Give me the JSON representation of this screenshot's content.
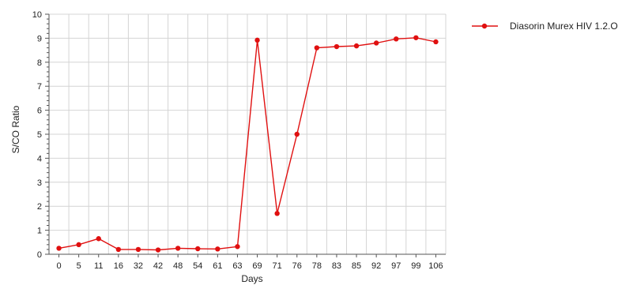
{
  "chart_data": {
    "type": "line",
    "title": "",
    "xlabel": "Days",
    "ylabel": "S/CO Ratio",
    "ylim": [
      0,
      10
    ],
    "yticks": [
      0,
      1,
      2,
      3,
      4,
      5,
      6,
      7,
      8,
      9,
      10
    ],
    "minor_ticks_per_major": 4,
    "grid": true,
    "legend_position": "top-right",
    "categories": [
      "0",
      "5",
      "11",
      "16",
      "32",
      "42",
      "48",
      "54",
      "61",
      "63",
      "69",
      "71",
      "76",
      "78",
      "83",
      "85",
      "92",
      "97",
      "99",
      "106"
    ],
    "series": [
      {
        "name": "Diasorin Murex HIV 1.2.O",
        "color": "#e01010",
        "marker": "circle",
        "values": [
          0.25,
          0.4,
          0.65,
          0.2,
          0.2,
          0.18,
          0.25,
          0.23,
          0.22,
          0.32,
          8.92,
          1.7,
          5.0,
          8.6,
          8.65,
          8.68,
          8.8,
          8.97,
          9.02,
          8.85
        ]
      }
    ]
  }
}
